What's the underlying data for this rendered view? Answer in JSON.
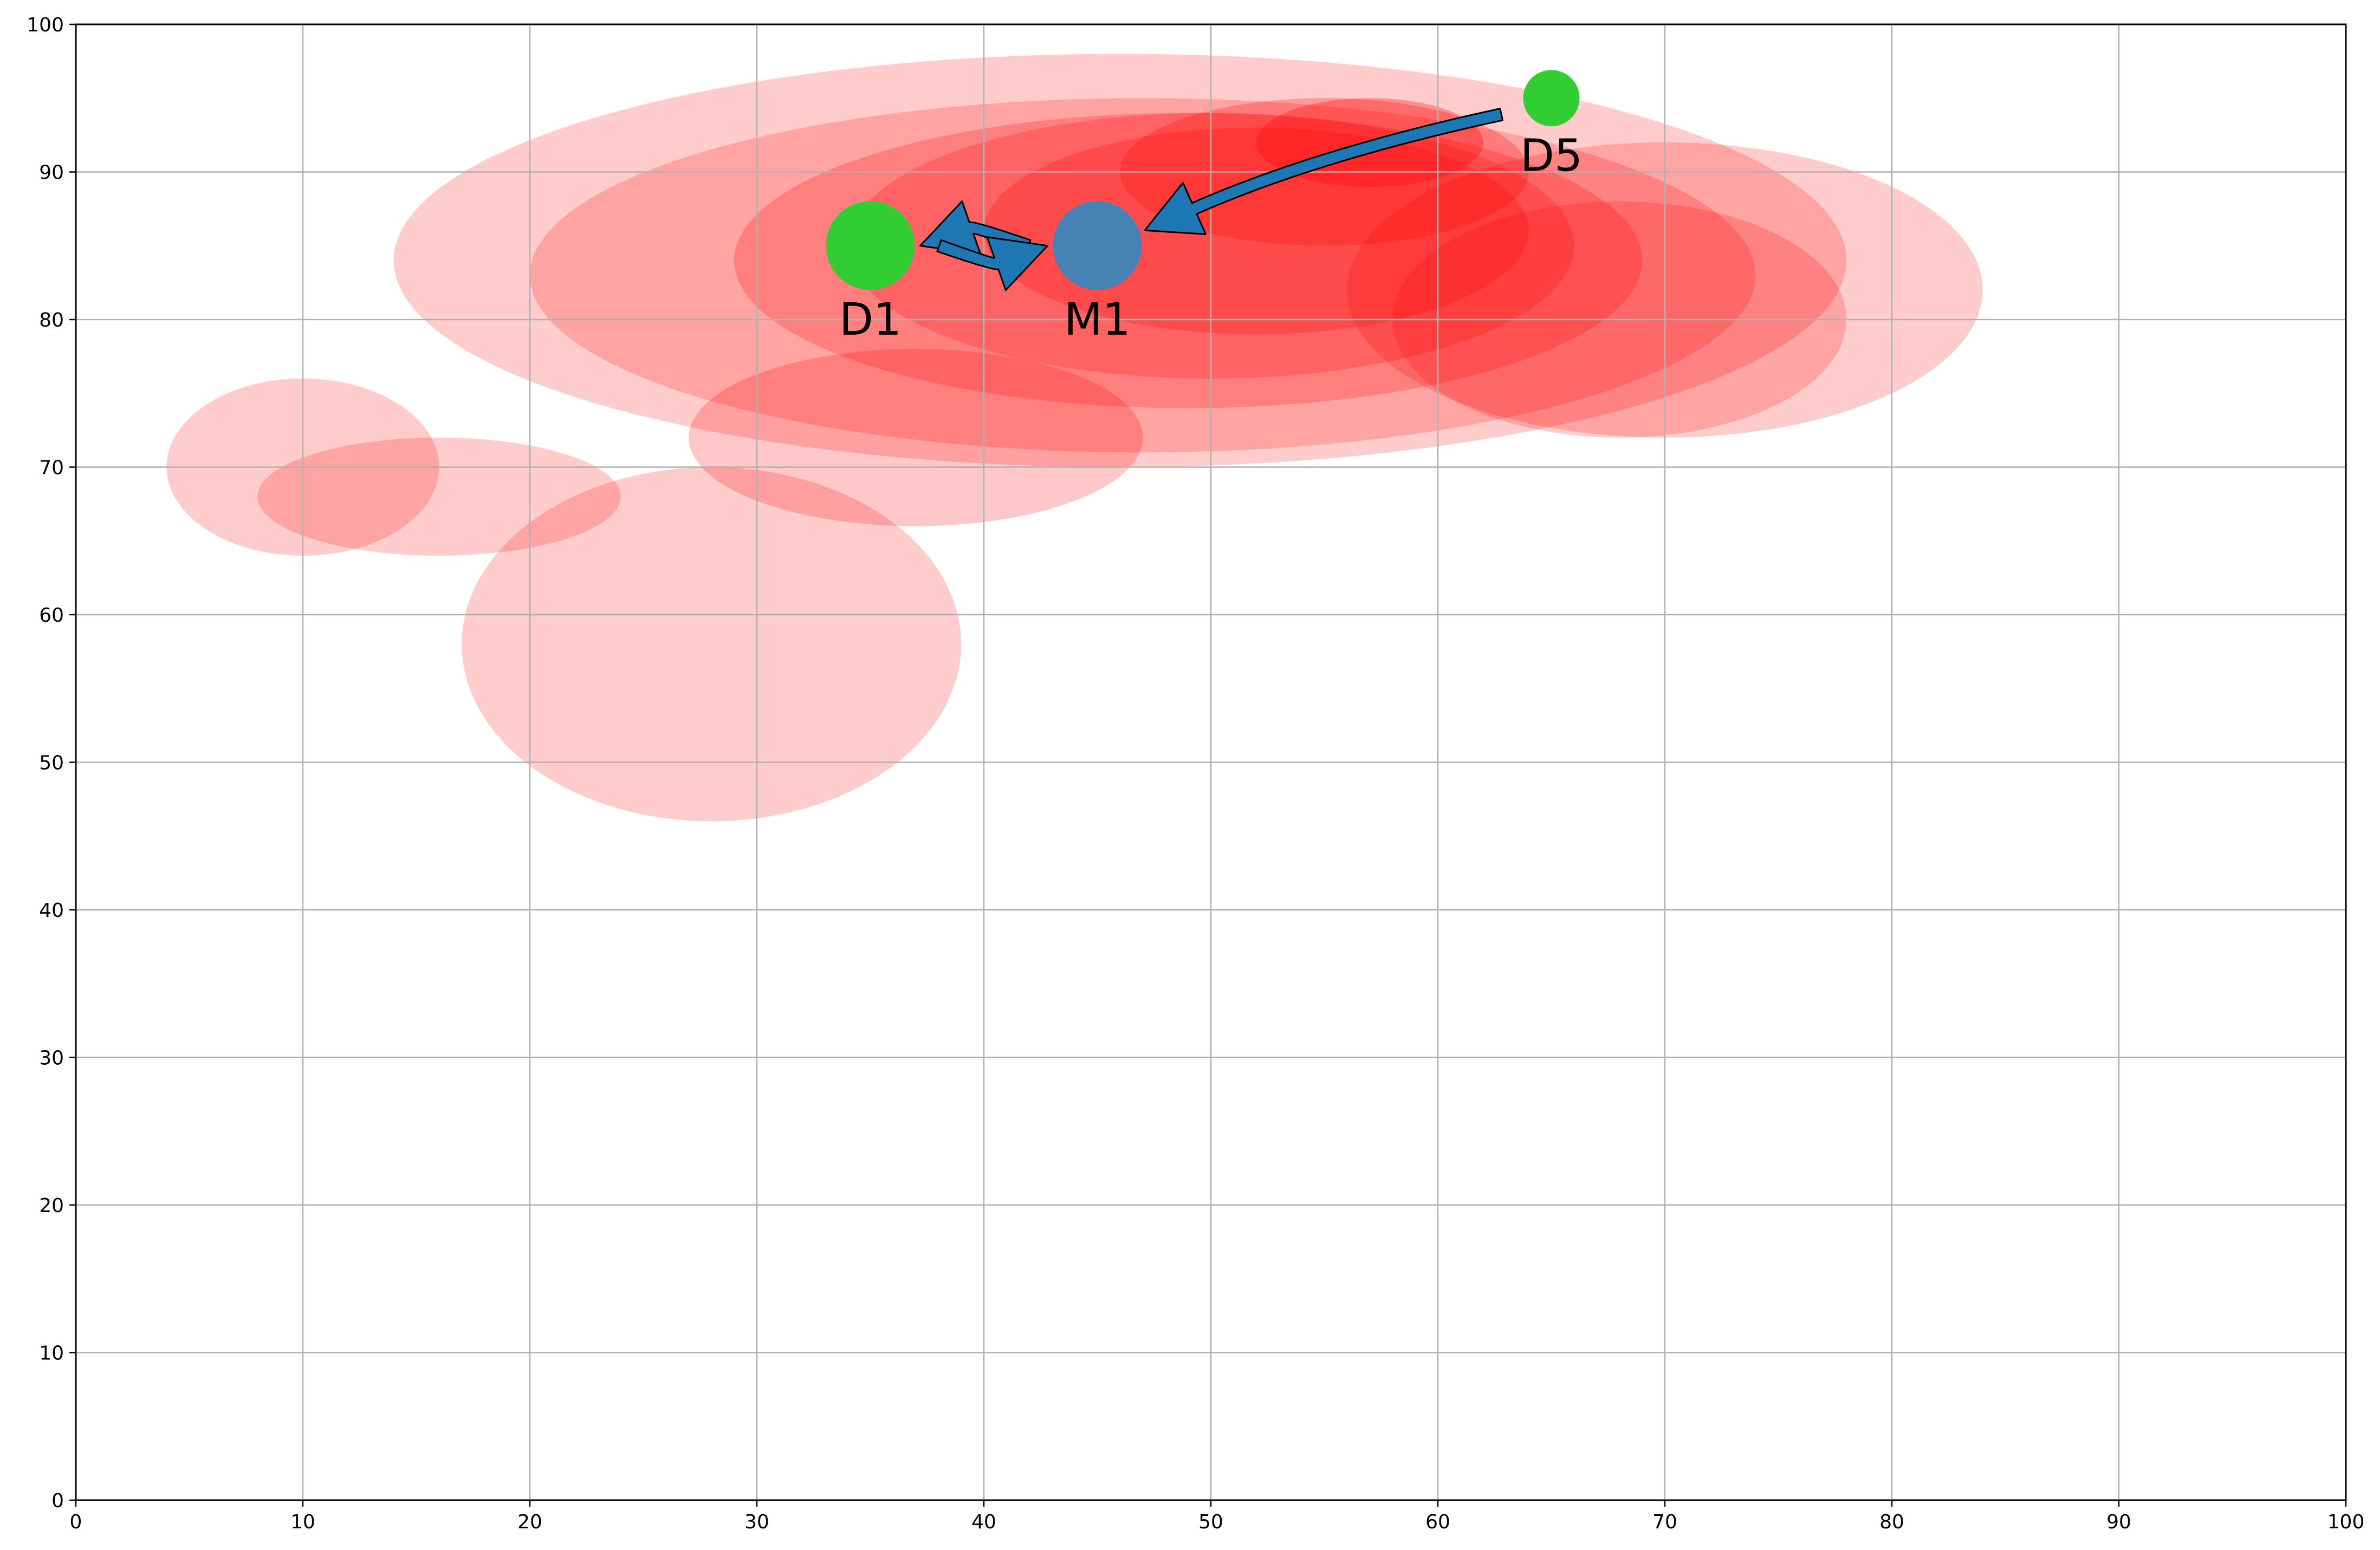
{
  "chart_data": {
    "type": "scatter",
    "title": "",
    "xlabel": "",
    "ylabel": "",
    "xlim": [
      0,
      100
    ],
    "ylim": [
      0,
      100
    ],
    "x_ticks": [
      0,
      10,
      20,
      30,
      40,
      50,
      60,
      70,
      80,
      90,
      100
    ],
    "y_ticks": [
      0,
      10,
      20,
      30,
      40,
      50,
      60,
      70,
      80,
      90,
      100
    ],
    "grid": true,
    "points": [
      {
        "label": "D1",
        "x": 35,
        "y": 85,
        "color": "#32cd32",
        "size": "large"
      },
      {
        "label": "M1",
        "x": 45,
        "y": 85,
        "color": "#4682b4",
        "size": "large"
      },
      {
        "label": "D5",
        "x": 65,
        "y": 95,
        "color": "#32cd32",
        "size": "small"
      }
    ],
    "arrows": [
      {
        "from": "M1",
        "to": "D1",
        "color": "#1f77b4"
      },
      {
        "from": "D1",
        "to": "M1",
        "color": "#1f77b4"
      },
      {
        "from": "D5",
        "to": "M1",
        "color": "#1f77b4"
      }
    ],
    "density": {
      "type": "filled-kde-contours",
      "color": "#ff0000",
      "peak": [
        56,
        92
      ],
      "levels": 7
    }
  }
}
